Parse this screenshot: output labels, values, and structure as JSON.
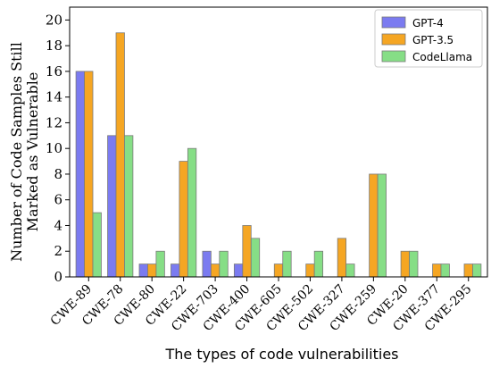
{
  "chart_data": {
    "type": "bar",
    "title": "",
    "xlabel": "The types of code vulnerabilities",
    "ylabel_lines": [
      "Number of Code Samples Still",
      "Marked as Vulnerable"
    ],
    "ylim": [
      0,
      21
    ],
    "yticks": [
      0,
      2,
      4,
      6,
      8,
      10,
      12,
      14,
      16,
      18,
      20
    ],
    "legend_position": "top-right",
    "categories": [
      "CWE-89",
      "CWE-78",
      "CWE-80",
      "CWE-22",
      "CWE-703",
      "CWE-400",
      "CWE-605",
      "CWE-502",
      "CWE-327",
      "CWE-259",
      "CWE-20",
      "CWE-377",
      "CWE-295"
    ],
    "series": [
      {
        "name": "GPT-4",
        "color": "#7b7bf0",
        "values": [
          16,
          11,
          1,
          1,
          2,
          1,
          0,
          0,
          0,
          0,
          0,
          0,
          0
        ]
      },
      {
        "name": "GPT-3.5",
        "color": "#f5a623",
        "values": [
          16,
          19,
          1,
          9,
          1,
          4,
          1,
          1,
          3,
          8,
          2,
          1,
          1
        ]
      },
      {
        "name": "CodeLlama",
        "color": "#86de86",
        "values": [
          5,
          11,
          2,
          10,
          2,
          3,
          2,
          2,
          1,
          8,
          2,
          1,
          1
        ]
      }
    ]
  }
}
